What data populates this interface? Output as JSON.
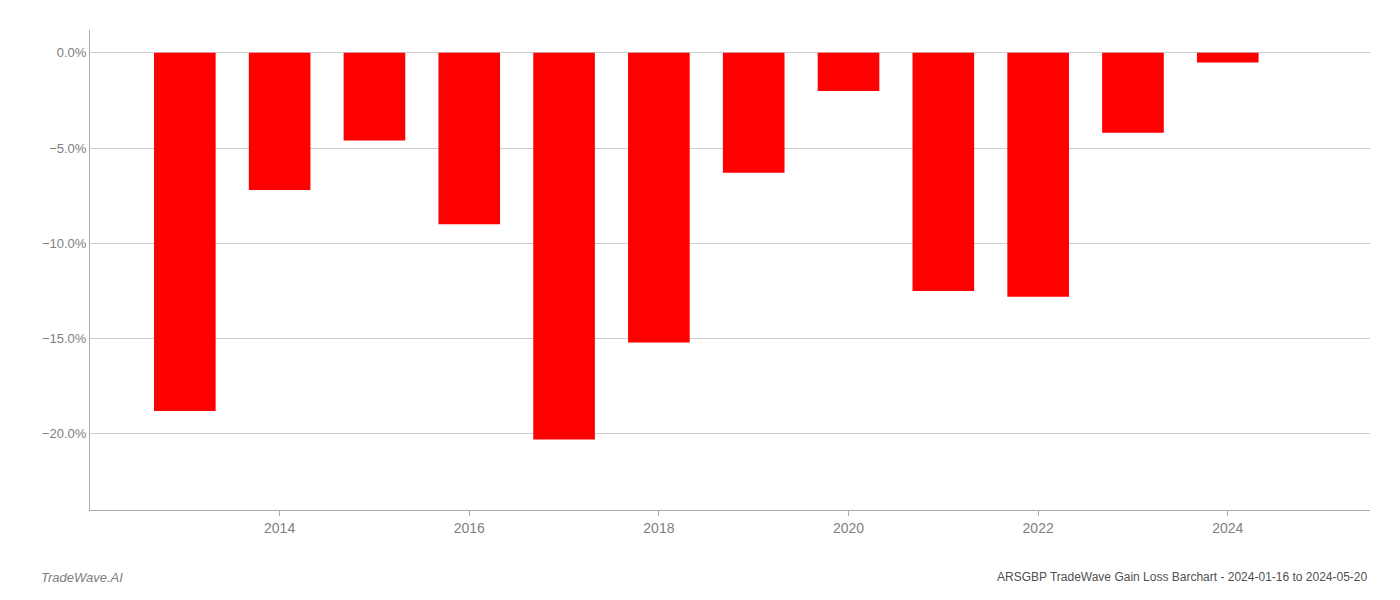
{
  "chart_data": {
    "type": "bar",
    "title": "ARSGBP TradeWave Gain Loss Barchart - 2024-01-16 to 2024-05-20",
    "annotations": [
      {
        "text": "TradeWave.AI"
      }
    ],
    "x": [
      2013,
      2014,
      2015,
      2016,
      2017,
      2018,
      2019,
      2020,
      2021,
      2022,
      2023,
      2024
    ],
    "values": [
      -18.8,
      -7.2,
      -4.6,
      -9.0,
      -20.3,
      -15.2,
      -6.3,
      -2.0,
      -12.5,
      -12.8,
      -4.2,
      -0.5
    ],
    "color": "#ff0000",
    "xlim": [
      2012.0,
      2025.5
    ],
    "xticks": [
      2014,
      2016,
      2018,
      2020,
      2022,
      2024
    ],
    "ylim": [
      -24.0,
      1.2
    ],
    "yticks": [
      {
        "value": 0.0,
        "label": "0.0%"
      },
      {
        "value": -5.0,
        "label": "−5.0%"
      },
      {
        "value": -10.0,
        "label": "−10.0%"
      },
      {
        "value": -15.0,
        "label": "−15.0%"
      },
      {
        "value": -20.0,
        "label": "−20.0%"
      }
    ],
    "grid": true
  }
}
